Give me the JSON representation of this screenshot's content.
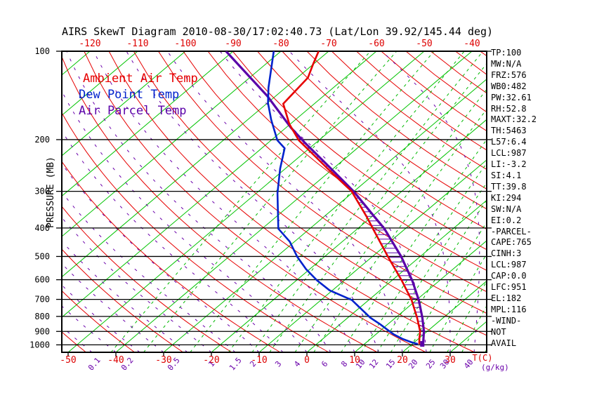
{
  "title": "AIRS SkewT Diagram 2010-08-30/17:02:40.73 (Lat/Lon 39.92/145.44 deg)",
  "legend": {
    "ambient": "Ambient Air Temp",
    "dew": "Dew Point Temp",
    "parcel": "Air Parcel Temp"
  },
  "colors": {
    "ambient": "#e60000",
    "dew": "#0022cc",
    "parcel": "#5a00a8",
    "isotherm": "#00c300",
    "dry_adiabat": "#e60000",
    "mixing_ratio": "#00b800",
    "moist_adiabat": "#6a00aa",
    "axis": "#000000",
    "temp_label": "#dd0000",
    "mixing_label": "#6a00aa"
  },
  "axes": {
    "pressure_label": "PRESSURE (MB)",
    "pressure_ticks": [
      100,
      200,
      300,
      400,
      500,
      600,
      700,
      800,
      900,
      1000
    ],
    "top_temp_ticks": [
      -120,
      -110,
      -100,
      -90,
      -80,
      -70,
      -60,
      -50,
      -40
    ],
    "bottom_temp_ticks": [
      -50,
      -40,
      -30,
      -20,
      -10,
      0,
      10,
      20,
      30
    ],
    "temp_unit": "T(C)",
    "mixing_ratio_labels": [
      0.1,
      0.2,
      0.5,
      1,
      1.5,
      2,
      3,
      4,
      6,
      8,
      10,
      12,
      15,
      20,
      25,
      30,
      40
    ],
    "mixing_ratio_unit": "(g/kg)"
  },
  "stats": [
    "TP:100",
    "MW:N/A",
    "FRZ:576",
    "WB0:482",
    "PW:32.61",
    "RH:52.8",
    "MAXT:32.2",
    "TH:5463",
    "L57:6.4",
    "LCL:987",
    "LI:-3.2",
    "SI:4.1",
    "TT:39.8",
    "KI:294",
    "SW:N/A",
    "EI:0.2",
    "-PARCEL-",
    "CAPE:765",
    "CINH:3",
    "LCL:987",
    "CAP:0.0",
    "LFC:951",
    "EL:182",
    "MPL:116",
    "-WIND-",
    "NOT",
    "AVAIL"
  ],
  "chart_data": {
    "type": "line",
    "title": "AIRS SkewT Diagram 2010-08-30/17:02:40.73 (Lat/Lon 39.92/145.44 deg)",
    "xlabel": "Temperature (C), skewed",
    "ylabel": "Pressure (MB), logarithmic 100-1060",
    "x_range_bottom_c": [
      -50,
      30
    ],
    "x_range_top_c": [
      -120,
      -40
    ],
    "pressure_range_mb": [
      100,
      1060
    ],
    "grid": "skew-t log-p background",
    "series": [
      {
        "name": "Ambient Air Temp",
        "units": "[pressure_mb, temp_c]",
        "points": [
          [
            100,
            -72.1
          ],
          [
            111,
            -70.0
          ],
          [
            123,
            -67.8
          ],
          [
            151,
            -66.5
          ],
          [
            177,
            -60.2
          ],
          [
            201,
            -54.2
          ],
          [
            250,
            -41.4
          ],
          [
            300,
            -30.5
          ],
          [
            365,
            -21.2
          ],
          [
            402,
            -16.8
          ],
          [
            501,
            -6.7
          ],
          [
            604,
            2.1
          ],
          [
            704,
            9.0
          ],
          [
            808,
            14.5
          ],
          [
            899,
            18.5
          ],
          [
            950,
            20.1
          ],
          [
            994,
            21.5
          ]
        ]
      },
      {
        "name": "Dew Point Temp",
        "units": "[pressure_mb, temp_c]",
        "points": [
          [
            100,
            -81.5
          ],
          [
            133,
            -73.6
          ],
          [
            150,
            -69.9
          ],
          [
            171,
            -65.1
          ],
          [
            201,
            -58.7
          ],
          [
            214,
            -55.2
          ],
          [
            251,
            -51.1
          ],
          [
            304,
            -45.6
          ],
          [
            402,
            -36.6
          ],
          [
            445,
            -31.0
          ],
          [
            501,
            -25.7
          ],
          [
            552,
            -20.8
          ],
          [
            603,
            -15.7
          ],
          [
            652,
            -10.6
          ],
          [
            704,
            -3.5
          ],
          [
            808,
            4.7
          ],
          [
            852,
            8.5
          ],
          [
            890,
            11.4
          ],
          [
            919,
            13.6
          ],
          [
            953,
            16.6
          ],
          [
            979,
            19.3
          ],
          [
            994,
            21.2
          ]
        ]
      },
      {
        "name": "Air Parcel Temp",
        "units": "[pressure_mb, temp_c]",
        "points": [
          [
            100,
            -91.5
          ],
          [
            142,
            -71.8
          ],
          [
            182,
            -59.0
          ],
          [
            204,
            -52.6
          ],
          [
            250,
            -40.7
          ],
          [
            300,
            -30.1
          ],
          [
            365,
            -19.6
          ],
          [
            402,
            -14.4
          ],
          [
            501,
            -3.9
          ],
          [
            604,
            4.3
          ],
          [
            704,
            10.5
          ],
          [
            808,
            15.6
          ],
          [
            899,
            19.3
          ],
          [
            974,
            21.7
          ],
          [
            1009,
            22.6
          ]
        ]
      }
    ],
    "cape_hatch_between": [
      "Ambient Air Temp",
      "Air Parcel Temp"
    ],
    "cape_hatch_pressure_range_mb": [
      185,
      950
    ],
    "background": {
      "isotherms_c": {
        "from": -120,
        "to": 40,
        "step": 10
      },
      "dry_adiabats_theta_c": {
        "from": -60,
        "to": 210,
        "step": 10
      },
      "moist_adiabats_surface_c": {
        "from": -45,
        "to": 40,
        "step": 5
      },
      "mixing_ratio_g_kg": [
        0.1,
        0.2,
        0.5,
        1,
        1.5,
        2,
        3,
        4,
        6,
        8,
        10,
        12,
        15,
        20,
        25,
        30,
        40
      ]
    }
  }
}
